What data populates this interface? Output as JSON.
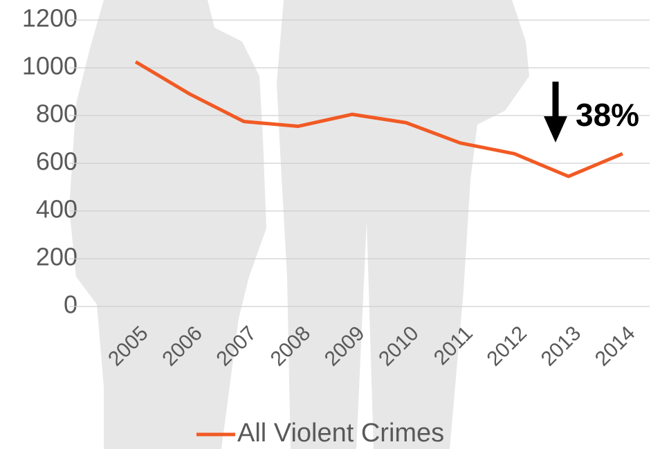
{
  "chart_data": {
    "type": "line",
    "categories": [
      "2005",
      "2006",
      "2007",
      "2008",
      "2009",
      "2010",
      "2011",
      "2012",
      "2013",
      "2014"
    ],
    "series": [
      {
        "name": "All Violent Crimes",
        "color": "#f15a24",
        "values": [
          1025,
          890,
          775,
          755,
          805,
          770,
          685,
          640,
          545,
          640
        ]
      }
    ],
    "ylim": [
      0,
      1200
    ],
    "yticks": [
      0,
      200,
      400,
      600,
      800,
      1000,
      1200
    ],
    "grid": true,
    "annotation": "38%",
    "legend": "bottom"
  }
}
